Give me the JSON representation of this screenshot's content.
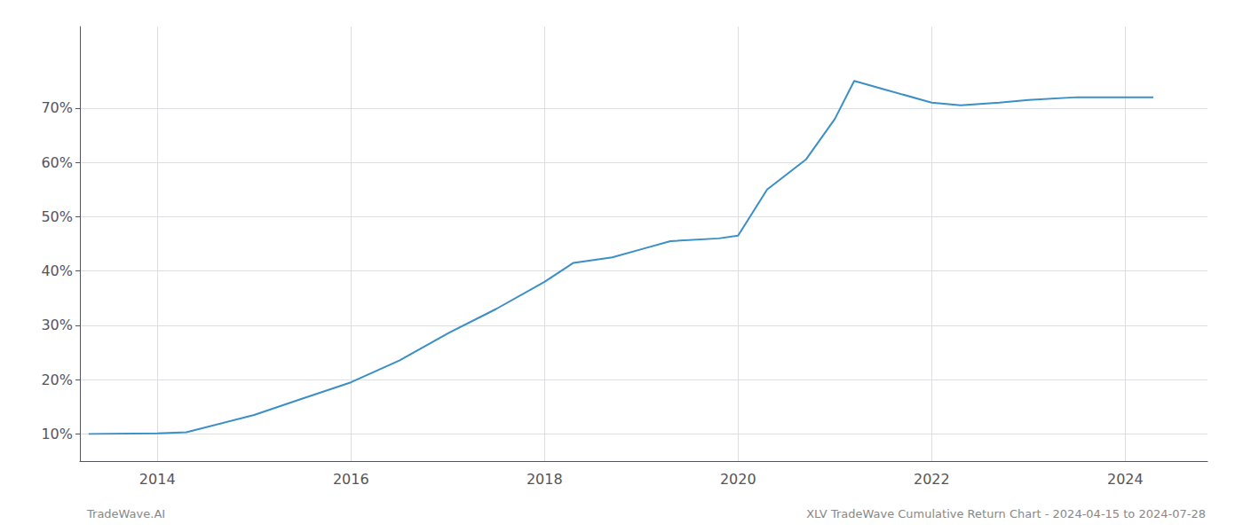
{
  "chart_data": {
    "type": "line",
    "x": [
      2013.29,
      2014.0,
      2014.3,
      2015.0,
      2015.5,
      2016.0,
      2016.5,
      2017.0,
      2017.5,
      2018.0,
      2018.3,
      2018.7,
      2019.0,
      2019.3,
      2019.8,
      2020.0,
      2020.3,
      2020.7,
      2021.0,
      2021.2,
      2021.5,
      2022.0,
      2022.3,
      2022.7,
      2023.0,
      2023.5,
      2024.0,
      2024.29
    ],
    "values": [
      10.0,
      10.1,
      10.3,
      13.5,
      16.5,
      19.5,
      23.5,
      28.5,
      33.0,
      38.0,
      41.5,
      42.5,
      44.0,
      45.5,
      46.0,
      46.5,
      55.0,
      60.5,
      68.0,
      75.0,
      73.5,
      71.0,
      70.5,
      71.0,
      71.5,
      72.0,
      72.0,
      72.0
    ],
    "color": "#3a8fc7",
    "xlim": [
      2013.2,
      2024.85
    ],
    "xticks": [
      2014,
      2016,
      2018,
      2020,
      2022,
      2024
    ],
    "ylim": [
      5,
      85
    ],
    "yticks": [
      {
        "value": 10,
        "label": "10%"
      },
      {
        "value": 20,
        "label": "20%"
      },
      {
        "value": 30,
        "label": "30%"
      },
      {
        "value": 40,
        "label": "40%"
      },
      {
        "value": 50,
        "label": "50%"
      },
      {
        "value": 60,
        "label": "60%"
      },
      {
        "value": 70,
        "label": "70%"
      }
    ],
    "grid": true,
    "annotations": [
      "TradeWave.AI",
      "XLV TradeWave Cumulative Return Chart - 2024-04-15 to 2024-07-28"
    ]
  }
}
